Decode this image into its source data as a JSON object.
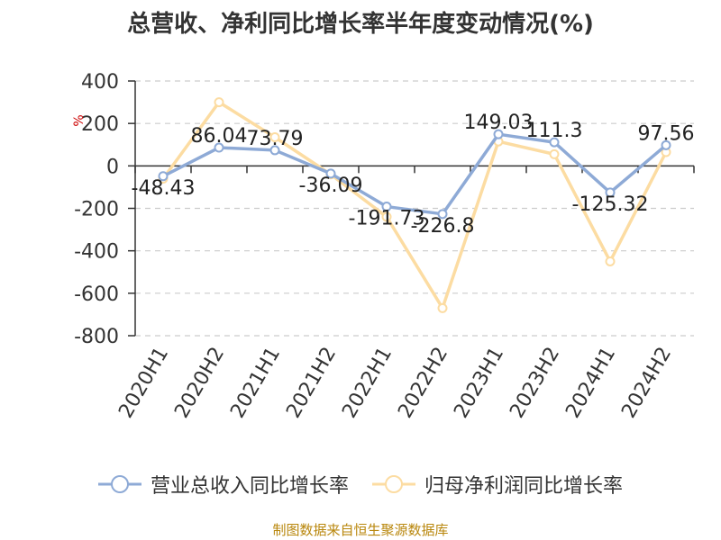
{
  "chart_data": {
    "type": "line",
    "title": "总营收、净利同比增长率半年度变动情况(%)",
    "ylabel": "%",
    "categories": [
      "2020H1",
      "2020H2",
      "2021H1",
      "2021H2",
      "2022H1",
      "2022H2",
      "2023H1",
      "2023H2",
      "2024H1",
      "2024H2"
    ],
    "ylim": [
      -800,
      400
    ],
    "yticks": [
      400,
      200,
      0,
      -200,
      -400,
      -600,
      -800
    ],
    "ytick_labels": [
      "400",
      "200",
      "0",
      "-200",
      "-400",
      "-600",
      "-800"
    ],
    "grid": true,
    "legend_position": "bottom",
    "series": [
      {
        "name": "营业总收入同比增长率",
        "color": "#8eaad6",
        "values": [
          -48.43,
          86.04,
          73.79,
          -36.09,
          -191.73,
          -226.8,
          149.03,
          111.3,
          -125.32,
          97.56
        ],
        "data_labels": [
          "-48.43",
          "86.04",
          "73.79",
          "-36.09",
          "-191.73",
          "-226.8",
          "149.03",
          "111.3",
          "-125.32",
          "97.56"
        ]
      },
      {
        "name": "归母净利润同比增长率",
        "color": "#fcdca2",
        "values": [
          -60,
          300,
          135,
          -40,
          -240,
          -670,
          115,
          55,
          -450,
          65
        ]
      }
    ]
  },
  "source": "制图数据来自恒生聚源数据库"
}
